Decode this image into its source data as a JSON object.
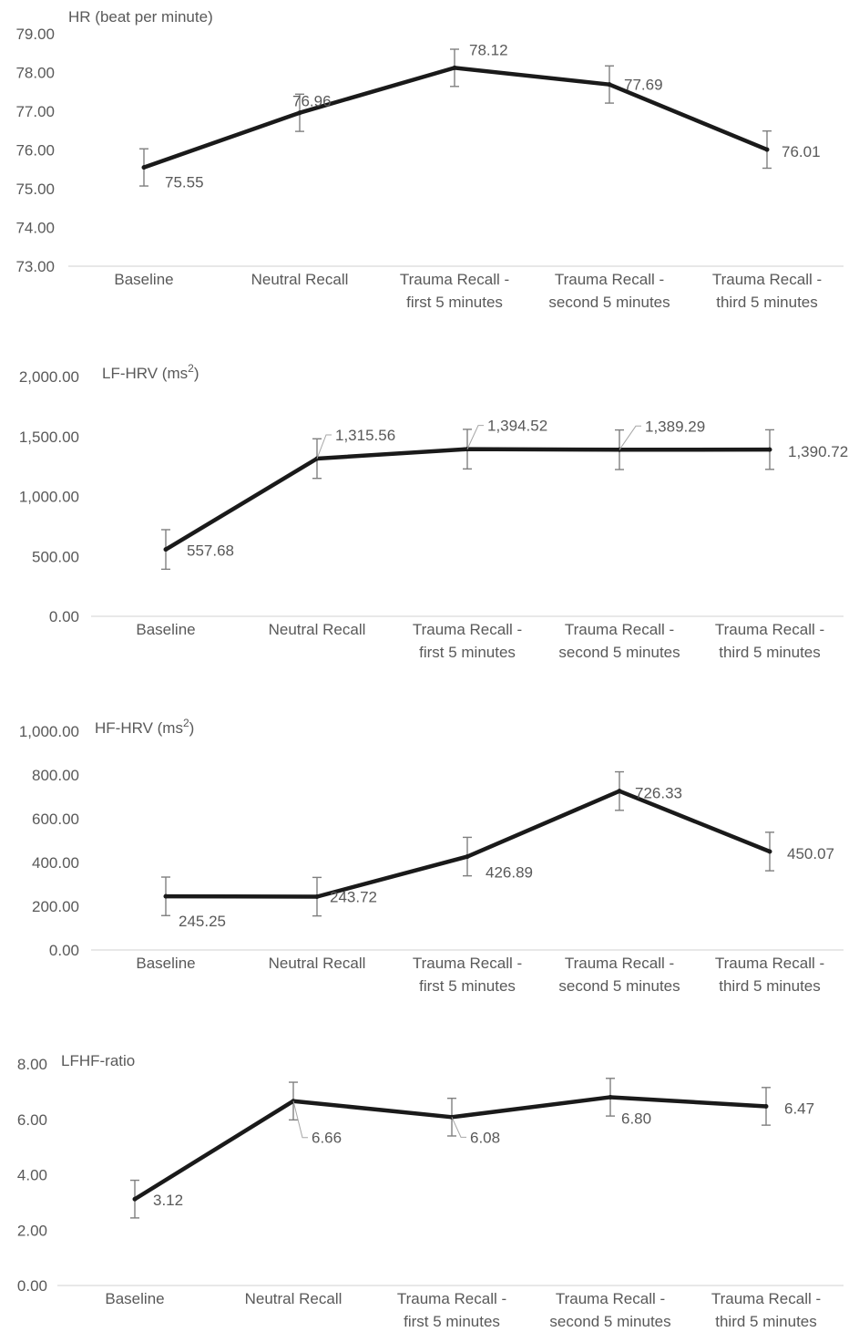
{
  "colors": {
    "line": "#1a1a1a",
    "errorbar": "#7f7f7f",
    "text": "#595959",
    "axis": "#d9d9d9"
  },
  "chart_data": [
    {
      "type": "line",
      "ylabel": "HR (beat per minute)",
      "categories": [
        [
          "Baseline"
        ],
        [
          "Neutral Recall"
        ],
        [
          "Trauma Recall -",
          "first 5 minutes"
        ],
        [
          "Trauma Recall -",
          "second 5 minutes"
        ],
        [
          "Trauma Recall -",
          "third 5 minutes"
        ]
      ],
      "values": [
        75.55,
        76.96,
        78.12,
        77.69,
        76.01
      ],
      "labels": [
        "75.55",
        "76.96",
        "78.12",
        "77.69",
        "76.01"
      ],
      "error": [
        0.48,
        0.48,
        0.48,
        0.48,
        0.48
      ],
      "ylim": [
        73,
        79
      ],
      "yticks": [
        "73.00",
        "74.00",
        "75.00",
        "76.00",
        "77.00",
        "78.00",
        "79.00"
      ],
      "grid": false
    },
    {
      "type": "line",
      "ylabel": "LF-HRV (ms²)",
      "categories": [
        [
          "Baseline"
        ],
        [
          "Neutral Recall"
        ],
        [
          "Trauma Recall -",
          "first 5 minutes"
        ],
        [
          "Trauma Recall -",
          "second 5 minutes"
        ],
        [
          "Trauma Recall -",
          "third 5 minutes"
        ]
      ],
      "values": [
        557.68,
        1315.56,
        1394.52,
        1389.29,
        1390.72
      ],
      "labels": [
        "557.68",
        "1,315.56",
        "1,394.52",
        "1,389.29",
        "1,390.72"
      ],
      "error": [
        165,
        165,
        165,
        165,
        165
      ],
      "ylim": [
        0,
        2000
      ],
      "yticks": [
        "0.00",
        "500.00",
        "1,000.00",
        "1,500.00",
        "2,000.00"
      ],
      "grid": false
    },
    {
      "type": "line",
      "ylabel": "HF-HRV (ms²)",
      "categories": [
        [
          "Baseline"
        ],
        [
          "Neutral Recall"
        ],
        [
          "Trauma Recall -",
          "first 5 minutes"
        ],
        [
          "Trauma Recall -",
          "second 5 minutes"
        ],
        [
          "Trauma Recall -",
          "third 5 minutes"
        ]
      ],
      "values": [
        245.25,
        243.72,
        426.89,
        726.33,
        450.07
      ],
      "labels": [
        "245.25",
        "243.72",
        "426.89",
        "726.33",
        "450.07"
      ],
      "error": [
        88,
        88,
        88,
        88,
        88
      ],
      "ylim": [
        0,
        1000
      ],
      "yticks": [
        "0.00",
        "200.00",
        "400.00",
        "600.00",
        "800.00",
        "1,000.00"
      ],
      "grid": false
    },
    {
      "type": "line",
      "ylabel": "LFHF-ratio",
      "categories": [
        [
          "Baseline"
        ],
        [
          "Neutral Recall"
        ],
        [
          "Trauma Recall -",
          "first 5 minutes"
        ],
        [
          "Trauma Recall -",
          "second 5 minutes"
        ],
        [
          "Trauma Recall -",
          "third 5 minutes"
        ]
      ],
      "values": [
        3.12,
        6.66,
        6.08,
        6.8,
        6.47
      ],
      "labels": [
        "3.12",
        "6.66",
        "6.08",
        "6.80",
        "6.47"
      ],
      "error": [
        0.68,
        0.68,
        0.68,
        0.68,
        0.68
      ],
      "ylim": [
        0,
        8
      ],
      "yticks": [
        "0.00",
        "2.00",
        "4.00",
        "6.00",
        "8.00"
      ],
      "grid": false
    }
  ]
}
